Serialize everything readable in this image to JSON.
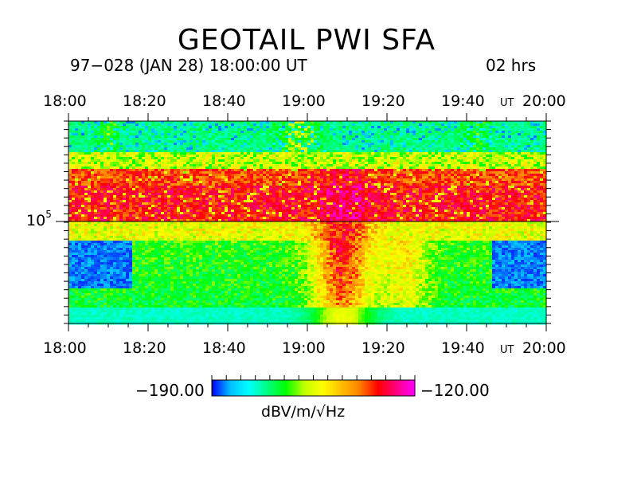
{
  "chart_data": {
    "type": "heatmap",
    "title": "GEOTAIL PWI SFA",
    "subtitle_left": "97−028 (JAN 28) 18:00:00 UT",
    "subtitle_right": "02 hrs",
    "x_ticks": [
      "18:00",
      "18:20",
      "18:40",
      "19:00",
      "19:20",
      "19:40",
      "20:00"
    ],
    "x_unit_label": "UT",
    "x_range_minutes": [
      0,
      120
    ],
    "y_tick_label_base": "10",
    "y_tick_label_exp": "5",
    "y_scale": "log",
    "colorbar": {
      "min": -190.0,
      "max": -120.0,
      "min_label": "−190.00",
      "max_label": "−120.00",
      "unit": "dBV/m/√Hz",
      "colors": [
        "#0000ff",
        "#00c0ff",
        "#00ffff",
        "#00ff80",
        "#00ff00",
        "#c0ff00",
        "#ffff00",
        "#ffc000",
        "#ff8000",
        "#ff0000",
        "#ff0080",
        "#ff00ff"
      ]
    }
  }
}
